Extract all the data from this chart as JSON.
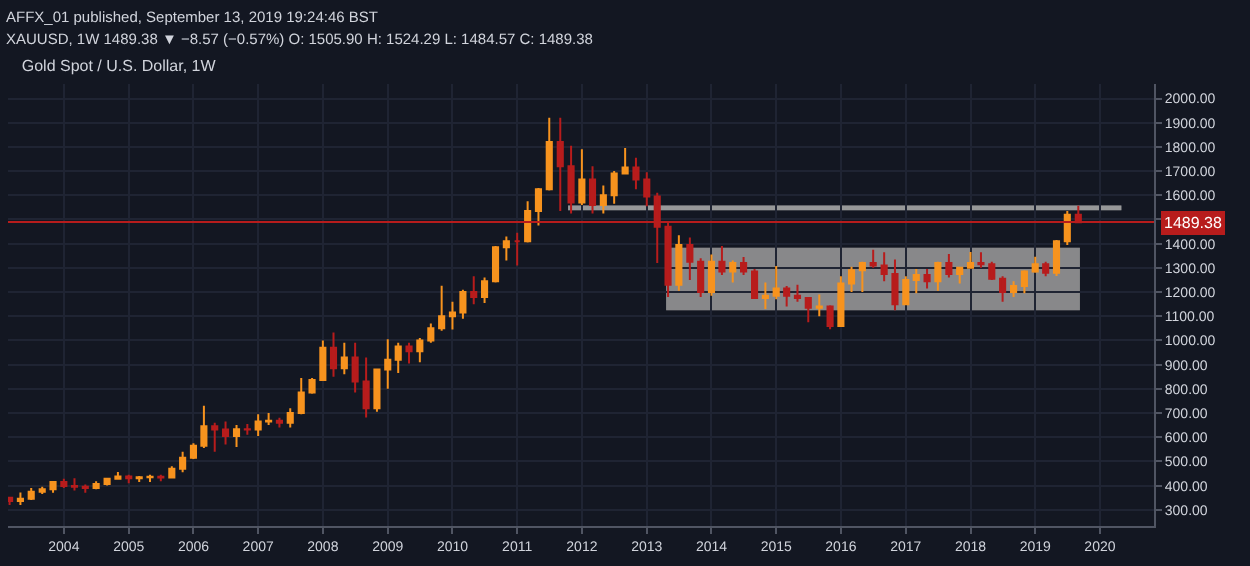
{
  "chart_data": {
    "type": "candlestick",
    "title": "Gold Spot / U.S. Dollar, 1W",
    "annotations": [
      "AFFX_01 published, September 13, 2019 19:24:46 BST",
      "XAUUSD, 1W 1489.38 ▼ −8.57 (−0.57%) O: 1505.90 H: 1524.29 L: 1484.57 C: 1489.38"
    ],
    "x": [
      "2003-03",
      "2003-05",
      "2003-07",
      "2003-09",
      "2003-11",
      "2004-01",
      "2004-03",
      "2004-05",
      "2004-07",
      "2004-09",
      "2004-11",
      "2005-01",
      "2005-03",
      "2005-05",
      "2005-07",
      "2005-09",
      "2005-11",
      "2006-01",
      "2006-03",
      "2006-05",
      "2006-07",
      "2006-09",
      "2006-11",
      "2007-01",
      "2007-03",
      "2007-05",
      "2007-07",
      "2007-09",
      "2007-11",
      "2008-01",
      "2008-03",
      "2008-05",
      "2008-07",
      "2008-09",
      "2008-11",
      "2009-01",
      "2009-03",
      "2009-05",
      "2009-07",
      "2009-09",
      "2009-11",
      "2010-01",
      "2010-03",
      "2010-05",
      "2010-07",
      "2010-09",
      "2010-11",
      "2011-01",
      "2011-03",
      "2011-05",
      "2011-07",
      "2011-09",
      "2011-11",
      "2012-01",
      "2012-03",
      "2012-05",
      "2012-07",
      "2012-09",
      "2012-11",
      "2013-01",
      "2013-03",
      "2013-05",
      "2013-07",
      "2013-09",
      "2013-11",
      "2014-01",
      "2014-03",
      "2014-05",
      "2014-07",
      "2014-09",
      "2014-11",
      "2015-01",
      "2015-03",
      "2015-05",
      "2015-07",
      "2015-09",
      "2015-11",
      "2016-01",
      "2016-03",
      "2016-05",
      "2016-07",
      "2016-09",
      "2016-11",
      "2017-01",
      "2017-03",
      "2017-05",
      "2017-07",
      "2017-09",
      "2017-11",
      "2018-01",
      "2018-03",
      "2018-05",
      "2018-07",
      "2018-09",
      "2018-11",
      "2019-01",
      "2019-03",
      "2019-05",
      "2019-07",
      "2019-09"
    ],
    "ohlc": [
      [
        350,
        352,
        320,
        336
      ],
      [
        336,
        372,
        320,
        346
      ],
      [
        346,
        390,
        340,
        375
      ],
      [
        375,
        395,
        365,
        385
      ],
      [
        385,
        418,
        370,
        415
      ],
      [
        415,
        428,
        390,
        398
      ],
      [
        398,
        430,
        380,
        395
      ],
      [
        395,
        405,
        370,
        390
      ],
      [
        390,
        418,
        385,
        407
      ],
      [
        407,
        430,
        400,
        428
      ],
      [
        428,
        456,
        425,
        438
      ],
      [
        438,
        445,
        410,
        430
      ],
      [
        430,
        440,
        415,
        435
      ],
      [
        435,
        445,
        415,
        437
      ],
      [
        437,
        445,
        418,
        434
      ],
      [
        434,
        480,
        430,
        470
      ],
      [
        470,
        540,
        455,
        515
      ],
      [
        515,
        575,
        510,
        565
      ],
      [
        565,
        730,
        555,
        645
      ],
      [
        645,
        660,
        540,
        632
      ],
      [
        632,
        665,
        570,
        605
      ],
      [
        605,
        650,
        560,
        633
      ],
      [
        633,
        655,
        610,
        632
      ],
      [
        632,
        695,
        605,
        665
      ],
      [
        665,
        700,
        650,
        668
      ],
      [
        668,
        680,
        640,
        660
      ],
      [
        660,
        720,
        640,
        700
      ],
      [
        700,
        845,
        695,
        785
      ],
      [
        785,
        845,
        780,
        837
      ],
      [
        837,
        1000,
        835,
        970
      ],
      [
        970,
        1033,
        850,
        885
      ],
      [
        885,
        990,
        860,
        930
      ],
      [
        930,
        990,
        785,
        830
      ],
      [
        830,
        930,
        681,
        720
      ],
      [
        720,
        880,
        705,
        880
      ],
      [
        880,
        1005,
        800,
        920
      ],
      [
        920,
        990,
        865,
        975
      ],
      [
        975,
        990,
        905,
        955
      ],
      [
        955,
        1010,
        910,
        1000
      ],
      [
        1000,
        1070,
        990,
        1050
      ],
      [
        1050,
        1226,
        1040,
        1100
      ],
      [
        1100,
        1160,
        1045,
        1115
      ],
      [
        1115,
        1210,
        1090,
        1200
      ],
      [
        1200,
        1265,
        1150,
        1180
      ],
      [
        1180,
        1260,
        1155,
        1245
      ],
      [
        1245,
        1390,
        1240,
        1385
      ],
      [
        1385,
        1430,
        1330,
        1410
      ],
      [
        1410,
        1445,
        1310,
        1410
      ],
      [
        1410,
        1575,
        1405,
        1535
      ],
      [
        1535,
        1630,
        1475,
        1625
      ],
      [
        1625,
        1920,
        1620,
        1820
      ],
      [
        1820,
        1920,
        1535,
        1720
      ],
      [
        1720,
        1805,
        1525,
        1570
      ],
      [
        1570,
        1790,
        1560,
        1665
      ],
      [
        1665,
        1720,
        1525,
        1560
      ],
      [
        1560,
        1640,
        1525,
        1600
      ],
      [
        1600,
        1700,
        1565,
        1690
      ],
      [
        1690,
        1795,
        1690,
        1715
      ],
      [
        1715,
        1755,
        1625,
        1665
      ],
      [
        1665,
        1695,
        1555,
        1595
      ],
      [
        1595,
        1610,
        1320,
        1470
      ],
      [
        1470,
        1490,
        1180,
        1230
      ],
      [
        1230,
        1435,
        1205,
        1395
      ],
      [
        1395,
        1425,
        1250,
        1325
      ],
      [
        1325,
        1340,
        1180,
        1200
      ],
      [
        1200,
        1355,
        1185,
        1325
      ],
      [
        1325,
        1390,
        1270,
        1285
      ],
      [
        1285,
        1330,
        1240,
        1320
      ],
      [
        1320,
        1345,
        1270,
        1285
      ],
      [
        1285,
        1295,
        1175,
        1175
      ],
      [
        1175,
        1240,
        1130,
        1185
      ],
      [
        1185,
        1308,
        1170,
        1215
      ],
      [
        1215,
        1225,
        1140,
        1185
      ],
      [
        1185,
        1230,
        1160,
        1175
      ],
      [
        1175,
        1180,
        1075,
        1135
      ],
      [
        1135,
        1190,
        1100,
        1140
      ],
      [
        1140,
        1145,
        1046,
        1060
      ],
      [
        1060,
        1265,
        1060,
        1235
      ],
      [
        1235,
        1305,
        1200,
        1290
      ],
      [
        1290,
        1325,
        1200,
        1320
      ],
      [
        1320,
        1375,
        1300,
        1310
      ],
      [
        1310,
        1365,
        1245,
        1275
      ],
      [
        1275,
        1335,
        1125,
        1150
      ],
      [
        1150,
        1265,
        1145,
        1250
      ],
      [
        1250,
        1295,
        1195,
        1270
      ],
      [
        1270,
        1295,
        1215,
        1245
      ],
      [
        1245,
        1325,
        1205,
        1320
      ],
      [
        1320,
        1357,
        1260,
        1275
      ],
      [
        1275,
        1300,
        1235,
        1300
      ],
      [
        1300,
        1366,
        1300,
        1320
      ],
      [
        1320,
        1365,
        1300,
        1315
      ],
      [
        1315,
        1325,
        1250,
        1255
      ],
      [
        1255,
        1265,
        1160,
        1200
      ],
      [
        1200,
        1245,
        1180,
        1225
      ],
      [
        1225,
        1290,
        1195,
        1285
      ],
      [
        1285,
        1346,
        1280,
        1315
      ],
      [
        1315,
        1325,
        1265,
        1280
      ],
      [
        1280,
        1415,
        1266,
        1410
      ],
      [
        1410,
        1535,
        1395,
        1520
      ],
      [
        1520,
        1557,
        1484,
        1489
      ]
    ],
    "colors": [
      "#b71c1c",
      "#f7931e",
      "#f7931e",
      "#f7931e",
      "#f7931e",
      "#b71c1c",
      "#b71c1c",
      "#b71c1c",
      "#f7931e",
      "#f7931e",
      "#f7931e",
      "#b71c1c",
      "#f7931e",
      "#f7931e",
      "#b71c1c",
      "#f7931e",
      "#f7931e",
      "#f7931e",
      "#f7931e",
      "#b71c1c",
      "#b71c1c",
      "#f7931e",
      "#b71c1c",
      "#f7931e",
      "#f7931e",
      "#b71c1c",
      "#f7931e",
      "#f7931e",
      "#f7931e",
      "#f7931e",
      "#b71c1c",
      "#f7931e",
      "#b71c1c",
      "#b71c1c",
      "#f7931e",
      "#f7931e",
      "#f7931e",
      "#b71c1c",
      "#f7931e",
      "#f7931e",
      "#f7931e",
      "#f7931e",
      "#f7931e",
      "#b71c1c",
      "#f7931e",
      "#f7931e",
      "#f7931e",
      "#b71c1c",
      "#f7931e",
      "#f7931e",
      "#f7931e",
      "#b71c1c",
      "#b71c1c",
      "#f7931e",
      "#b71c1c",
      "#f7931e",
      "#f7931e",
      "#f7931e",
      "#b71c1c",
      "#b71c1c",
      "#b71c1c",
      "#b71c1c",
      "#f7931e",
      "#b71c1c",
      "#b71c1c",
      "#f7931e",
      "#b71c1c",
      "#f7931e",
      "#b71c1c",
      "#b71c1c",
      "#f7931e",
      "#f7931e",
      "#b71c1c",
      "#b71c1c",
      "#b71c1c",
      "#f7931e",
      "#b71c1c",
      "#f7931e",
      "#f7931e",
      "#f7931e",
      "#b71c1c",
      "#b71c1c",
      "#b71c1c",
      "#f7931e",
      "#f7931e",
      "#b71c1c",
      "#f7931e",
      "#b71c1c",
      "#f7931e",
      "#f7931e",
      "#b71c1c",
      "#b71c1c",
      "#b71c1c",
      "#f7931e",
      "#f7931e",
      "#f7931e",
      "#b71c1c",
      "#f7931e",
      "#f7931e",
      "#b71c1c"
    ],
    "series": [
      {
        "type": "area",
        "x": [
          "2013-04-20",
          "2019-09-10"
        ],
        "values": [
          null,
          null
        ],
        "lower": [
          1125,
          1125
        ],
        "upper": [
          1383,
          1383
        ],
        "color": "#9e9e9e"
      },
      {
        "type": "area",
        "x": [
          "2011-10-15",
          "2020-05-01"
        ],
        "values": [
          null,
          null
        ],
        "lower": [
          1538,
          1538
        ],
        "upper": [
          1558,
          1558
        ],
        "color": "#b0b0b0"
      }
    ],
    "xlim": [
      "2003-02-20",
      "2020-11-01"
    ],
    "xticks": [
      "2004",
      "2005",
      "2006",
      "2007",
      "2008",
      "2009",
      "2010",
      "2011",
      "2012",
      "2013",
      "2014",
      "2015",
      "2016",
      "2017",
      "2018",
      "2019",
      "2020"
    ],
    "ylim": [
      233,
      2060
    ],
    "yticks": [
      {
        "value": 300,
        "label": "300.00"
      },
      {
        "value": 400,
        "label": "400.00"
      },
      {
        "value": 500,
        "label": "500.00"
      },
      {
        "value": 600,
        "label": "600.00"
      },
      {
        "value": 700,
        "label": "700.00"
      },
      {
        "value": 800,
        "label": "800.00"
      },
      {
        "value": 900,
        "label": "900.00"
      },
      {
        "value": 1000,
        "label": "1000.00"
      },
      {
        "value": 1100,
        "label": "1100.00"
      },
      {
        "value": 1200,
        "label": "1200.00"
      },
      {
        "value": 1300,
        "label": "1300.00"
      },
      {
        "value": 1400,
        "label": "1400.00"
      },
      {
        "value": 1500,
        "label": null
      },
      {
        "value": 1600,
        "label": "1600.00"
      },
      {
        "value": 1700,
        "label": "1700.00"
      },
      {
        "value": 1800,
        "label": "1800.00"
      },
      {
        "value": 1900,
        "label": "1900.00"
      },
      {
        "value": 2000,
        "label": "2000.00"
      }
    ],
    "ref_lines": [
      {
        "axis": "y",
        "value": 1489.38,
        "label": "1489.38",
        "color": "#b71c1c"
      }
    ],
    "grid": true
  }
}
